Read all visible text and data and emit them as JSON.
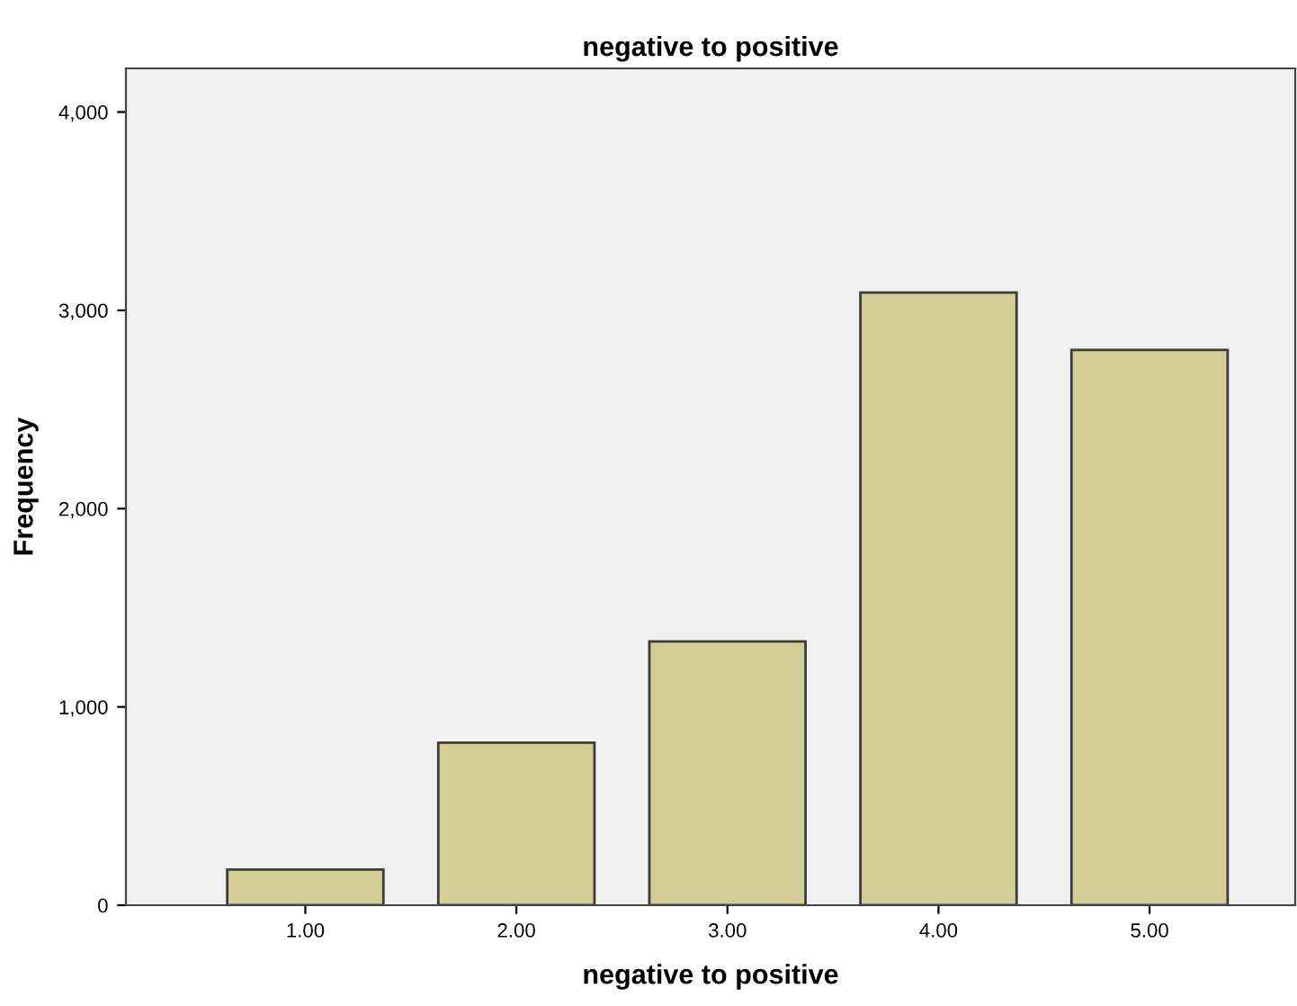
{
  "chart_data": {
    "type": "bar",
    "title": "negative to positive",
    "xlabel": "negative to positive",
    "ylabel": "Frequency",
    "categories": [
      "1.00",
      "2.00",
      "3.00",
      "4.00",
      "5.00"
    ],
    "values": [
      180,
      820,
      1330,
      3090,
      2800
    ],
    "color": "#d3ce97",
    "ylim": [
      0,
      4220
    ],
    "yticks": [
      {
        "value": 0,
        "label": "0"
      },
      {
        "value": 1000,
        "label": "1,000"
      },
      {
        "value": 2000,
        "label": "2,000"
      },
      {
        "value": 3000,
        "label": "3,000"
      },
      {
        "value": 4000,
        "label": "4,000"
      }
    ],
    "grid": false,
    "legend": false
  }
}
